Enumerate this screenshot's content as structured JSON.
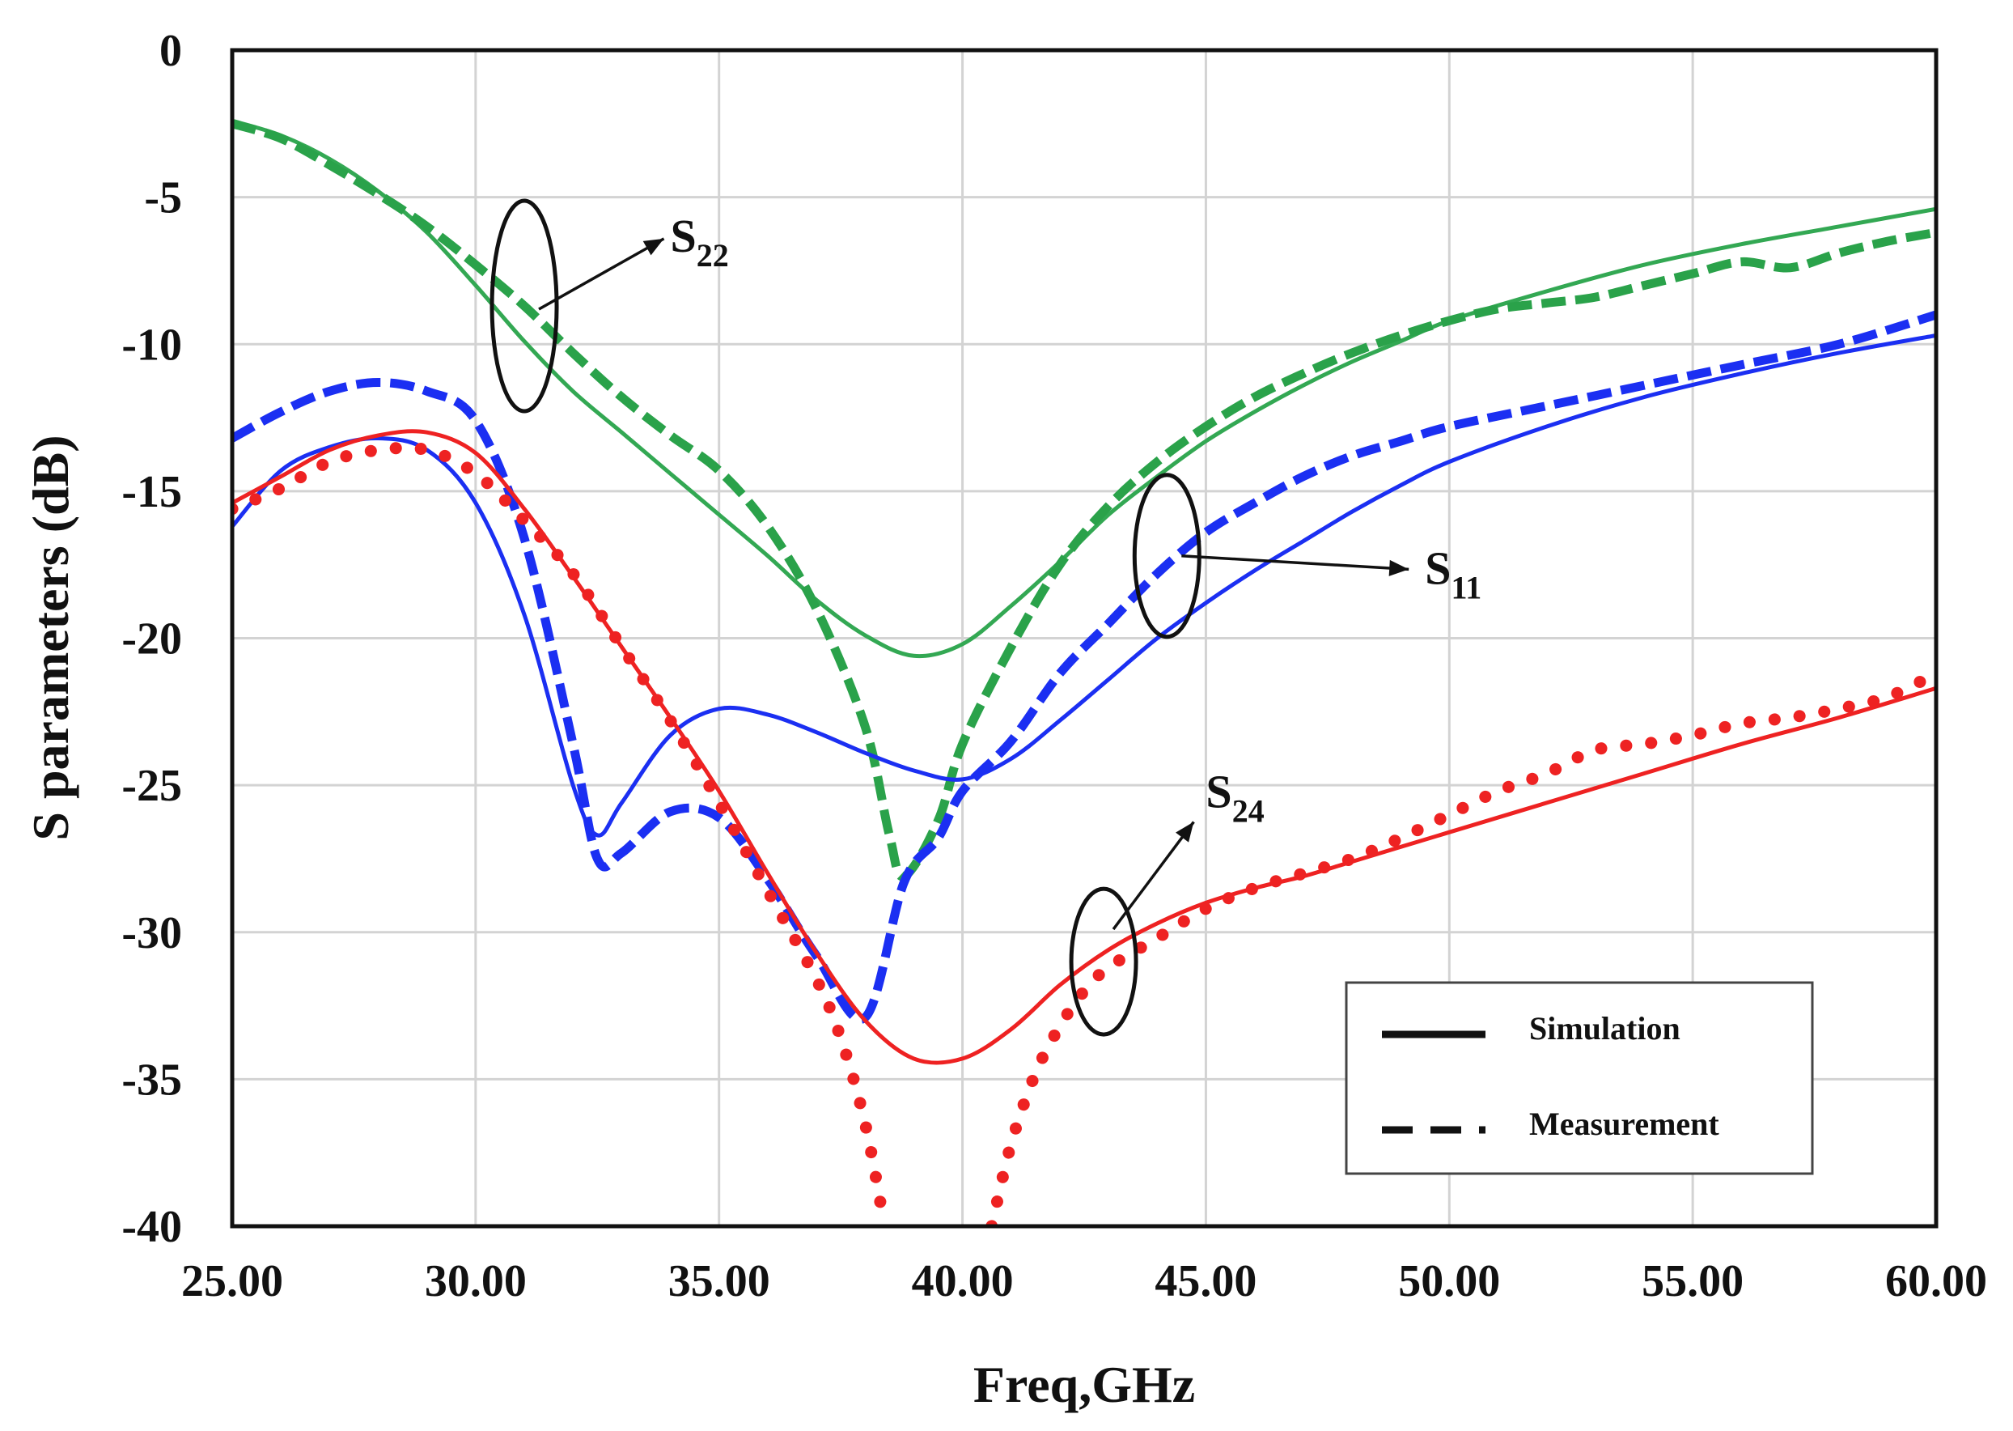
{
  "chart_data": {
    "type": "line",
    "title": "",
    "xlabel": "Freq,GHz",
    "ylabel": "S parameters (dB)",
    "xlim": [
      25,
      60
    ],
    "ylim": [
      -40,
      0
    ],
    "xticks": [
      25,
      30,
      35,
      40,
      45,
      50,
      55,
      60
    ],
    "xtick_labels": [
      "25.00",
      "30.00",
      "35.00",
      "40.00",
      "45.00",
      "50.00",
      "55.00",
      "60.00"
    ],
    "yticks": [
      0,
      -5,
      -10,
      -15,
      -20,
      -25,
      -30,
      -35,
      -40
    ],
    "ytick_labels": [
      "0",
      "-5",
      "-10",
      "-15",
      "-20",
      "-25",
      "-30",
      "-35",
      "-40"
    ],
    "grid": true,
    "legend_position": "bottom-right",
    "legend": [
      {
        "label": "Simulation",
        "style": "solid"
      },
      {
        "label": "Measurement",
        "style": "dashed"
      }
    ],
    "annotations": [
      {
        "main": "S",
        "sub": "22",
        "at": [
          31.0,
          -8.7
        ],
        "label_at": [
          34.0,
          -6.3
        ]
      },
      {
        "main": "S",
        "sub": "11",
        "at": [
          44.2,
          -17.2
        ],
        "label_at": [
          49.5,
          -17.6
        ]
      },
      {
        "main": "S",
        "sub": "24",
        "at": [
          42.9,
          -31.0
        ],
        "label_at": [
          45.0,
          -25.2
        ]
      }
    ],
    "series": [
      {
        "name": "S22 Simulation",
        "color": "#33a853",
        "style": "solid",
        "points": [
          [
            25,
            -2.4
          ],
          [
            26,
            -2.9
          ],
          [
            27,
            -3.7
          ],
          [
            28,
            -4.8
          ],
          [
            29,
            -6.2
          ],
          [
            30,
            -8.0
          ],
          [
            31,
            -9.9
          ],
          [
            32,
            -11.6
          ],
          [
            33,
            -13.0
          ],
          [
            34,
            -14.4
          ],
          [
            35,
            -15.8
          ],
          [
            36,
            -17.2
          ],
          [
            37,
            -18.7
          ],
          [
            38,
            -19.9
          ],
          [
            39,
            -20.6
          ],
          [
            40,
            -20.2
          ],
          [
            41,
            -18.9
          ],
          [
            42,
            -17.4
          ],
          [
            43,
            -15.8
          ],
          [
            44,
            -14.5
          ],
          [
            45,
            -13.3
          ],
          [
            46,
            -12.3
          ],
          [
            47,
            -11.4
          ],
          [
            48,
            -10.6
          ],
          [
            49,
            -9.9
          ],
          [
            50,
            -9.2
          ],
          [
            52,
            -8.2
          ],
          [
            54,
            -7.3
          ],
          [
            56,
            -6.6
          ],
          [
            58,
            -6.0
          ],
          [
            60,
            -5.4
          ]
        ]
      },
      {
        "name": "S22 Measurement",
        "color": "#2aa24a",
        "style": "dashed",
        "points": [
          [
            25,
            -2.5
          ],
          [
            26,
            -3.0
          ],
          [
            27,
            -3.9
          ],
          [
            28,
            -4.9
          ],
          [
            29,
            -6.0
          ],
          [
            30,
            -7.3
          ],
          [
            31,
            -8.7
          ],
          [
            32,
            -10.3
          ],
          [
            33,
            -11.8
          ],
          [
            34,
            -13.1
          ],
          [
            35,
            -14.3
          ],
          [
            36,
            -16.2
          ],
          [
            37,
            -19.0
          ],
          [
            38,
            -23.0
          ],
          [
            38.5,
            -26.7
          ],
          [
            38.8,
            -28.1
          ],
          [
            39.5,
            -26.2
          ],
          [
            40,
            -23.6
          ],
          [
            41,
            -20.3
          ],
          [
            42,
            -17.5
          ],
          [
            43,
            -15.5
          ],
          [
            44,
            -14.0
          ],
          [
            45,
            -12.8
          ],
          [
            46,
            -11.8
          ],
          [
            47,
            -11.0
          ],
          [
            48,
            -10.3
          ],
          [
            49,
            -9.7
          ],
          [
            50,
            -9.2
          ],
          [
            51,
            -8.8
          ],
          [
            52,
            -8.6
          ],
          [
            53,
            -8.4
          ],
          [
            54,
            -8.0
          ],
          [
            55,
            -7.6
          ],
          [
            56,
            -7.2
          ],
          [
            57,
            -7.4
          ],
          [
            58,
            -6.9
          ],
          [
            59,
            -6.5
          ],
          [
            60,
            -6.2
          ]
        ]
      },
      {
        "name": "S11 Simulation",
        "color": "#1b2ff2",
        "style": "solid",
        "points": [
          [
            25,
            -16.2
          ],
          [
            26,
            -14.3
          ],
          [
            27,
            -13.5
          ],
          [
            28,
            -13.2
          ],
          [
            29,
            -13.6
          ],
          [
            30,
            -15.4
          ],
          [
            31,
            -19.2
          ],
          [
            32,
            -25.0
          ],
          [
            32.5,
            -26.7
          ],
          [
            33,
            -25.6
          ],
          [
            34,
            -23.3
          ],
          [
            35,
            -22.4
          ],
          [
            36,
            -22.6
          ],
          [
            37,
            -23.2
          ],
          [
            38,
            -23.9
          ],
          [
            39,
            -24.5
          ],
          [
            40,
            -24.8
          ],
          [
            41,
            -24.1
          ],
          [
            42,
            -22.8
          ],
          [
            43,
            -21.4
          ],
          [
            44,
            -20.0
          ],
          [
            45,
            -18.8
          ],
          [
            46,
            -17.7
          ],
          [
            47,
            -16.7
          ],
          [
            48,
            -15.7
          ],
          [
            49,
            -14.8
          ],
          [
            50,
            -14.0
          ],
          [
            52,
            -12.8
          ],
          [
            54,
            -11.8
          ],
          [
            56,
            -11.0
          ],
          [
            58,
            -10.3
          ],
          [
            60,
            -9.7
          ]
        ]
      },
      {
        "name": "S11 Measurement",
        "color": "#1b2ff2",
        "style": "dashed",
        "points": [
          [
            25,
            -13.2
          ],
          [
            26,
            -12.3
          ],
          [
            27,
            -11.6
          ],
          [
            28,
            -11.3
          ],
          [
            29,
            -11.6
          ],
          [
            30,
            -12.6
          ],
          [
            31,
            -16.6
          ],
          [
            32,
            -23.6
          ],
          [
            32.5,
            -27.5
          ],
          [
            33,
            -27.3
          ],
          [
            34,
            -25.9
          ],
          [
            35,
            -26.1
          ],
          [
            36,
            -28.2
          ],
          [
            37,
            -30.8
          ],
          [
            38,
            -32.9
          ],
          [
            38.8,
            -28.3
          ],
          [
            39.5,
            -26.8
          ],
          [
            40,
            -25.2
          ],
          [
            41,
            -23.5
          ],
          [
            42,
            -21.2
          ],
          [
            43,
            -19.5
          ],
          [
            44,
            -17.8
          ],
          [
            45,
            -16.4
          ],
          [
            46,
            -15.4
          ],
          [
            47,
            -14.5
          ],
          [
            48,
            -13.8
          ],
          [
            49,
            -13.3
          ],
          [
            50,
            -12.8
          ],
          [
            52,
            -12.1
          ],
          [
            54,
            -11.4
          ],
          [
            56,
            -10.7
          ],
          [
            58,
            -10.0
          ],
          [
            60,
            -9.0
          ]
        ]
      },
      {
        "name": "S24 Simulation",
        "color": "#ee2222",
        "style": "solid",
        "points": [
          [
            25,
            -15.4
          ],
          [
            26,
            -14.5
          ],
          [
            27,
            -13.6
          ],
          [
            28,
            -13.1
          ],
          [
            29,
            -13.0
          ],
          [
            30,
            -13.7
          ],
          [
            31,
            -15.6
          ],
          [
            32,
            -17.9
          ],
          [
            33,
            -20.3
          ],
          [
            34,
            -22.7
          ],
          [
            35,
            -25.2
          ],
          [
            36,
            -28.0
          ],
          [
            37,
            -30.7
          ],
          [
            38,
            -33.0
          ],
          [
            39,
            -34.3
          ],
          [
            40,
            -34.3
          ],
          [
            41,
            -33.3
          ],
          [
            42,
            -31.8
          ],
          [
            43,
            -30.6
          ],
          [
            44,
            -29.7
          ],
          [
            45,
            -29.0
          ],
          [
            46,
            -28.5
          ],
          [
            47,
            -28.1
          ],
          [
            48,
            -27.6
          ],
          [
            49,
            -27.1
          ],
          [
            50,
            -26.6
          ],
          [
            52,
            -25.6
          ],
          [
            54,
            -24.6
          ],
          [
            56,
            -23.6
          ],
          [
            58,
            -22.7
          ],
          [
            60,
            -21.7
          ]
        ]
      },
      {
        "name": "S24 Measurement",
        "color": "#ee2222",
        "style": "dotted",
        "points": [
          [
            25,
            -15.6
          ],
          [
            26,
            -14.9
          ],
          [
            27,
            -14.0
          ],
          [
            28,
            -13.6
          ],
          [
            29,
            -13.6
          ],
          [
            30,
            -14.4
          ],
          [
            31,
            -16.0
          ],
          [
            32,
            -17.8
          ],
          [
            33,
            -20.3
          ],
          [
            34,
            -22.8
          ],
          [
            35,
            -25.6
          ],
          [
            36,
            -28.6
          ],
          [
            37,
            -31.6
          ],
          [
            37.5,
            -33.6
          ],
          [
            38,
            -36.5
          ],
          [
            38.4,
            -40.0
          ],
          [
            40.6,
            -40.0
          ],
          [
            41,
            -37.2
          ],
          [
            41.5,
            -34.8
          ],
          [
            42,
            -33.2
          ],
          [
            42.5,
            -32.0
          ],
          [
            43,
            -31.2
          ],
          [
            44,
            -30.2
          ],
          [
            45,
            -29.2
          ],
          [
            46,
            -28.5
          ],
          [
            47,
            -28.0
          ],
          [
            48,
            -27.5
          ],
          [
            49,
            -26.8
          ],
          [
            50,
            -26.0
          ],
          [
            51,
            -25.2
          ],
          [
            52,
            -24.6
          ],
          [
            53,
            -23.8
          ],
          [
            54,
            -23.6
          ],
          [
            55,
            -23.3
          ],
          [
            56,
            -22.9
          ],
          [
            57,
            -22.7
          ],
          [
            58,
            -22.4
          ],
          [
            59,
            -22.0
          ],
          [
            60,
            -21.2
          ]
        ]
      }
    ]
  }
}
